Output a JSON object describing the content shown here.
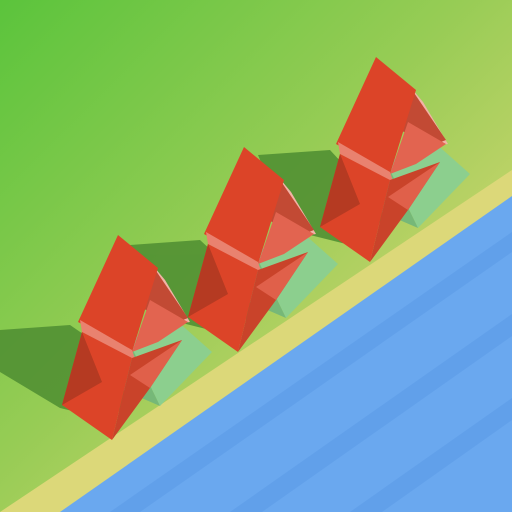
{
  "scene": {
    "description_colors": {
      "grass_light": "#5ec63f",
      "grass_mid": "#9ccd55",
      "sand": "#dcd879",
      "water": "#6aa8ef",
      "water_stripe": "#5d9be6",
      "sail_red": "#dc4428",
      "sail_dark": "#b53a22",
      "sail_pink": "#e9826f",
      "sail_light_pink": "#f2b3a6",
      "leg_green": "#8ccf8e",
      "shadow": "#4d8d31"
    },
    "windmills": [
      {
        "id": "windmill-1"
      },
      {
        "id": "windmill-2"
      },
      {
        "id": "windmill-3"
      }
    ]
  }
}
